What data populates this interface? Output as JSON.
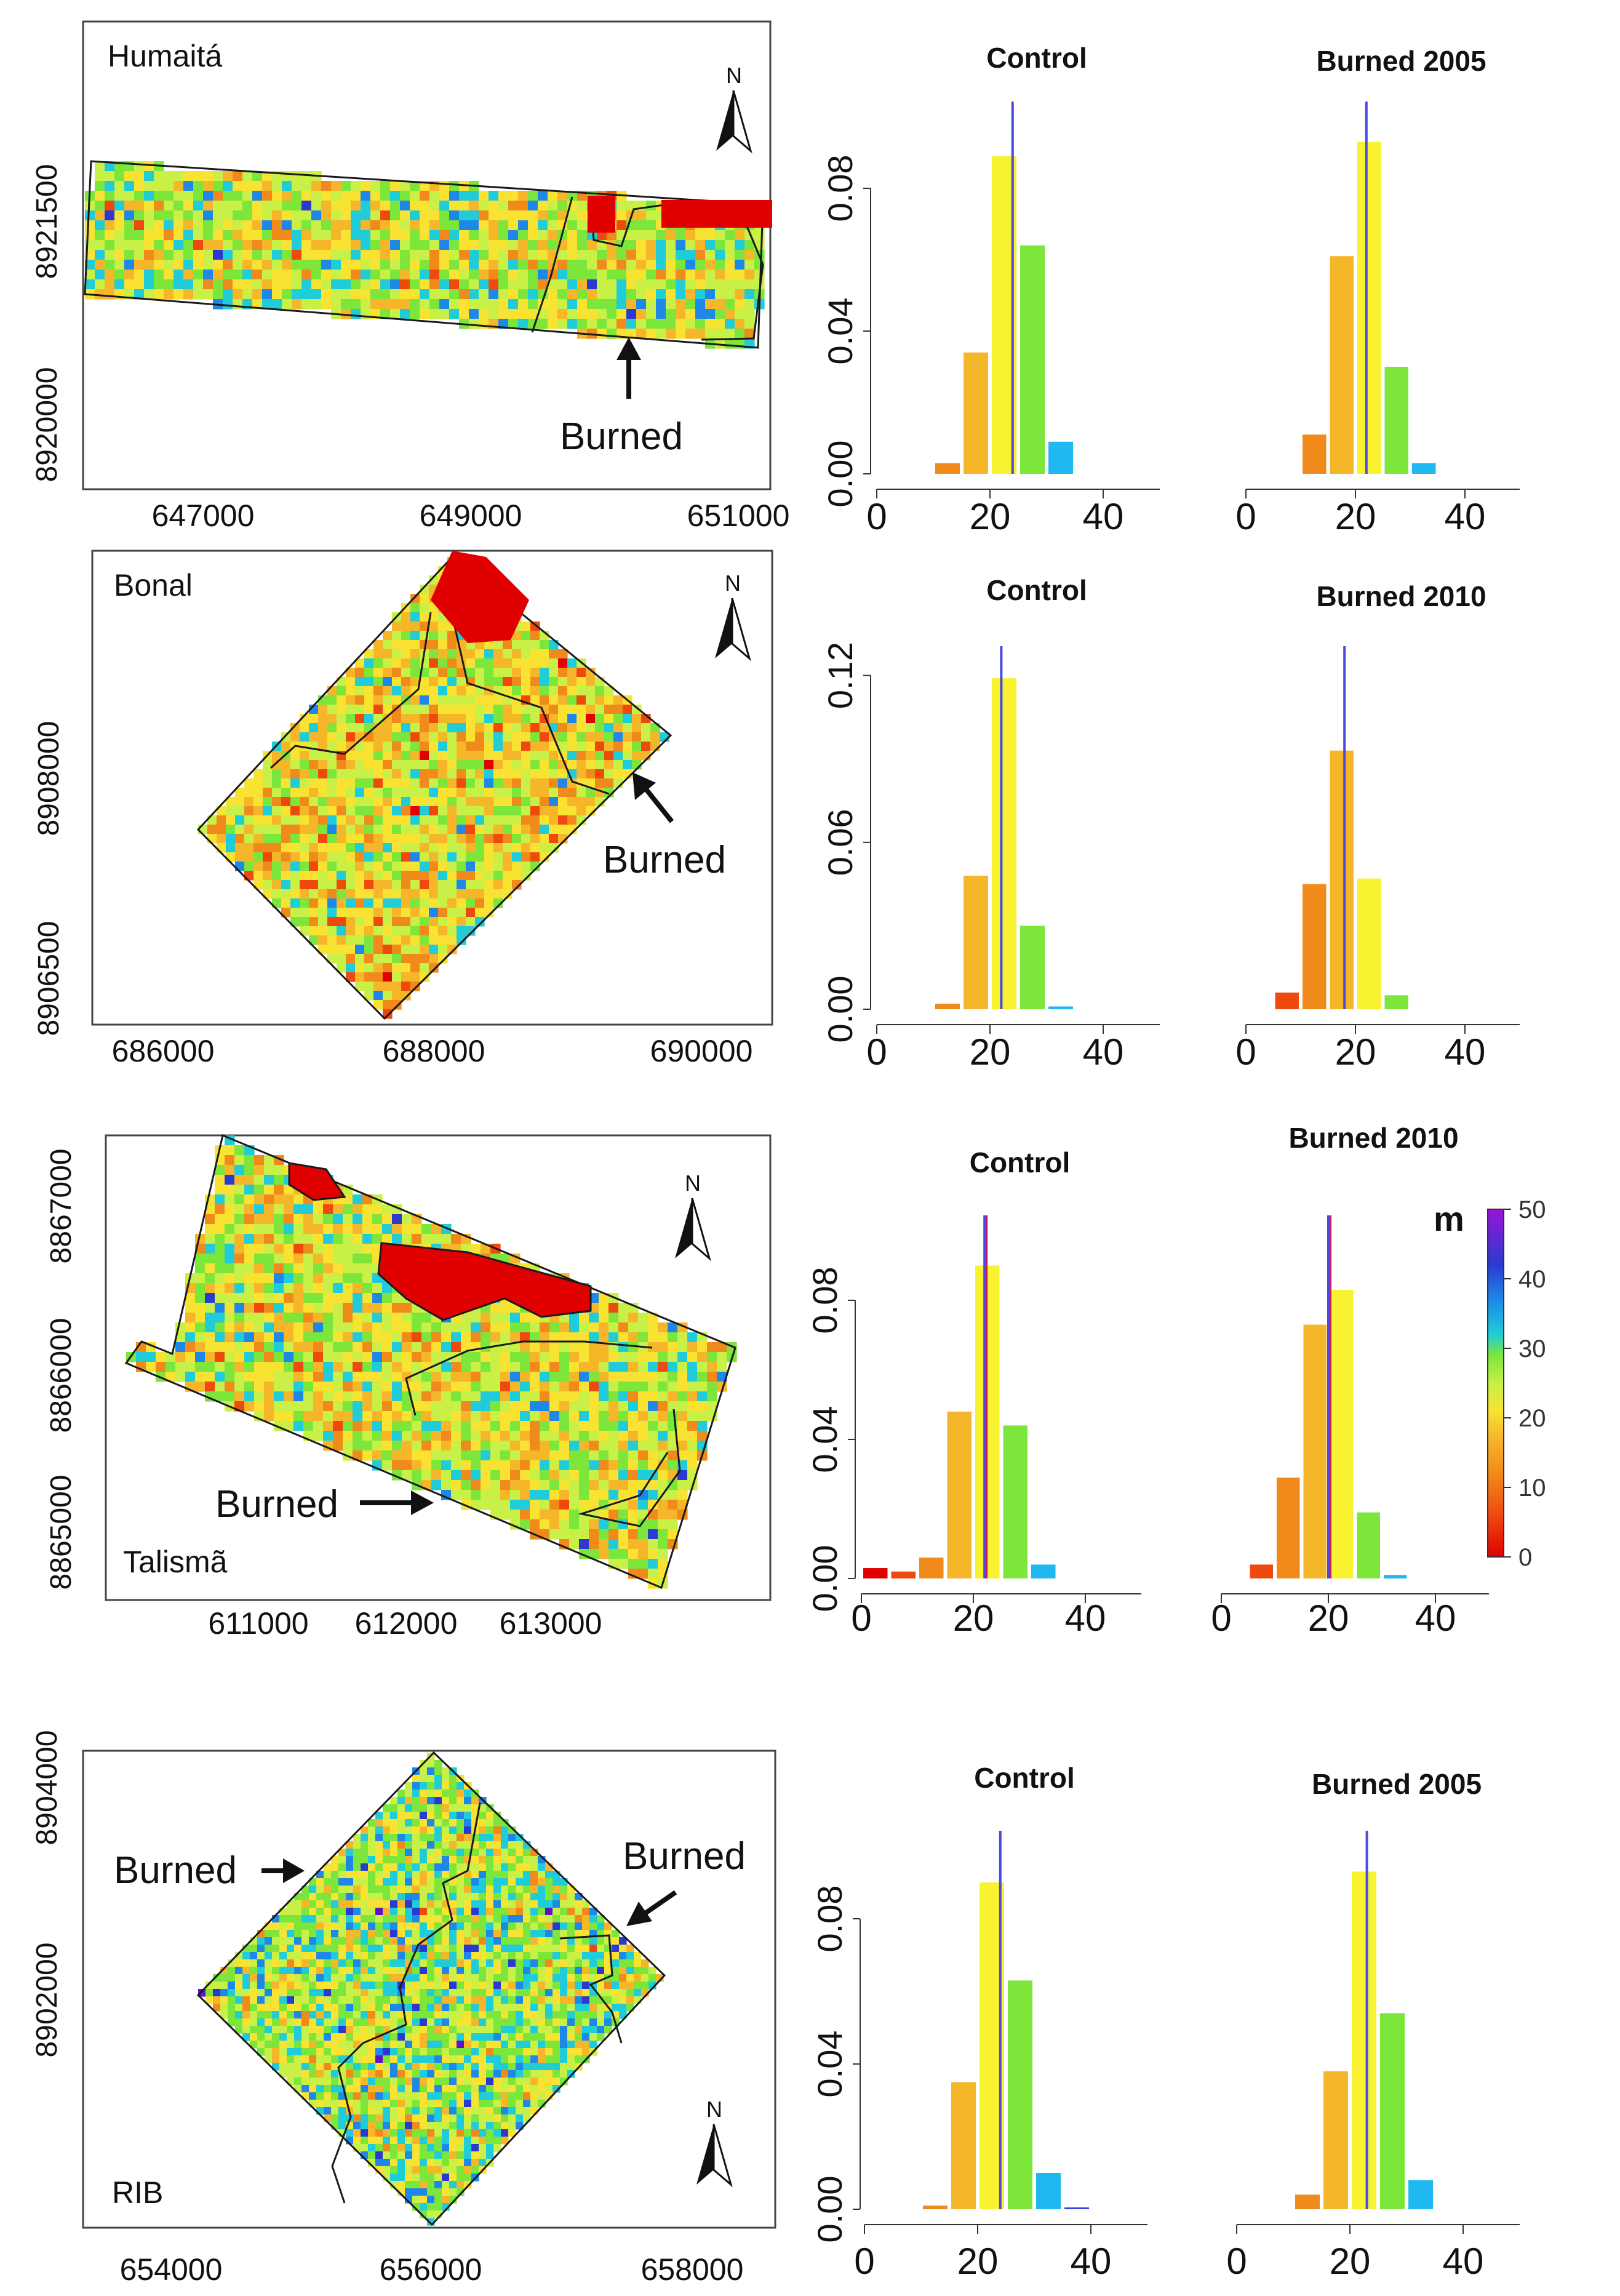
{
  "colors": {
    "scale": [
      "#e00000",
      "#ee4a0e",
      "#f08a1a",
      "#f6b62a",
      "#f8e232",
      "#c8f046",
      "#7ce63a",
      "#20ccd8",
      "#1e88e8",
      "#2a3ad0",
      "#6012c8",
      "#9a14d8"
    ],
    "mean_line": "#4a4ae0",
    "median_line": "#c0206a",
    "boundary": "#1a1a1a"
  },
  "legend": {
    "unit": "m",
    "ticks": [
      "50",
      "40",
      "30",
      "20",
      "10",
      "0"
    ]
  },
  "panels": [
    {
      "id": "humaita",
      "map": {
        "site_name": "Humaitá",
        "burned_labels": [
          "Burned"
        ],
        "north_label": "N",
        "x_ticks": [
          "647000",
          "649000",
          "651000"
        ],
        "y_ticks": [
          "8921500",
          "8920000"
        ]
      }
    },
    {
      "id": "bonal",
      "map": {
        "site_name": "Bonal",
        "burned_labels": [
          "Burned"
        ],
        "north_label": "N",
        "x_ticks": [
          "686000",
          "688000",
          "690000"
        ],
        "y_ticks": [
          "8908000",
          "8906500"
        ]
      }
    },
    {
      "id": "talisma",
      "map": {
        "site_name": "Talismã",
        "burned_labels": [
          "Burned"
        ],
        "north_label": "N",
        "x_ticks": [
          "611000",
          "612000",
          "613000"
        ],
        "y_ticks": [
          "8867000",
          "8866000",
          "8865000"
        ]
      }
    },
    {
      "id": "rib",
      "map": {
        "site_name": "RIB",
        "burned_labels": [
          "Burned",
          "Burned"
        ],
        "north_label": "N",
        "x_ticks": [
          "654000",
          "656000",
          "658000"
        ],
        "y_ticks": [
          "8904000",
          "8902000"
        ]
      }
    }
  ],
  "chart_data": [
    {
      "type": "bar",
      "title": "Control",
      "site": "Humaitá",
      "bin_edges": [
        0,
        5,
        10,
        15,
        20,
        25,
        30,
        35,
        40
      ],
      "values": [
        0,
        0,
        0.003,
        0.034,
        0.089,
        0.064,
        0.009,
        0
      ],
      "mean": 24,
      "x_ticks": [
        "0",
        "20",
        "40"
      ],
      "y_ticks": [
        "0.00",
        "0.04",
        "0.08"
      ],
      "ylim": [
        0,
        0.1
      ]
    },
    {
      "type": "bar",
      "title": "Burned 2005",
      "site": "Humaitá",
      "bin_edges": [
        0,
        5,
        10,
        15,
        20,
        25,
        30,
        35,
        40
      ],
      "values": [
        0,
        0,
        0.011,
        0.061,
        0.093,
        0.03,
        0.003,
        0
      ],
      "mean": 22,
      "x_ticks": [
        "0",
        "20",
        "40"
      ],
      "y_ticks": [
        "0.00",
        "0.04",
        "0.08"
      ],
      "ylim": [
        0,
        0.1
      ]
    },
    {
      "type": "bar",
      "title": "Control",
      "site": "Bonal",
      "bin_edges": [
        0,
        5,
        10,
        15,
        20,
        25,
        30,
        35,
        40
      ],
      "values": [
        0,
        0,
        0.002,
        0.048,
        0.119,
        0.03,
        0.001,
        0
      ],
      "mean": 22,
      "x_ticks": [
        "0",
        "20",
        "40"
      ],
      "y_ticks": [
        "0.00",
        "0.06",
        "0.12"
      ],
      "ylim": [
        0,
        0.125
      ]
    },
    {
      "type": "bar",
      "title": "Burned 2010",
      "site": "Bonal",
      "bin_edges": [
        0,
        5,
        10,
        15,
        20,
        25,
        30,
        35,
        40
      ],
      "values": [
        0,
        0.006,
        0.045,
        0.093,
        0.047,
        0.005,
        0,
        0
      ],
      "mean": 18,
      "x_ticks": [
        "0",
        "20",
        "40"
      ],
      "y_ticks": [
        "0.00",
        "0.06",
        "0.12"
      ],
      "ylim": [
        0,
        0.125
      ]
    },
    {
      "type": "bar",
      "title": "Control",
      "site": "Talismã",
      "bin_edges": [
        0,
        5,
        10,
        15,
        20,
        25,
        30,
        35,
        40
      ],
      "values": [
        0.003,
        0.002,
        0.006,
        0.048,
        0.09,
        0.044,
        0.004,
        0
      ],
      "mean": 22,
      "median": 22,
      "x_ticks": [
        "0",
        "20",
        "40"
      ],
      "y_ticks": [
        "0.00",
        "0.04",
        "0.08"
      ],
      "ylim": [
        0,
        0.1
      ]
    },
    {
      "type": "bar",
      "title": "Burned 2010",
      "site": "Talismã",
      "bin_edges": [
        0,
        5,
        10,
        15,
        20,
        25,
        30,
        35,
        40
      ],
      "values": [
        0,
        0.004,
        0.029,
        0.073,
        0.083,
        0.019,
        0.001,
        0
      ],
      "mean": 20,
      "median": 20,
      "x_ticks": [
        "0",
        "20",
        "40"
      ],
      "y_ticks": [
        "0.00",
        "0.04",
        "0.08"
      ],
      "ylim": [
        0,
        0.1
      ]
    },
    {
      "type": "bar",
      "title": "Control",
      "site": "RIB",
      "bin_edges": [
        0,
        5,
        10,
        15,
        20,
        25,
        30,
        35,
        40
      ],
      "values": [
        0,
        0,
        0.001,
        0.035,
        0.09,
        0.063,
        0.01,
        0.0005
      ],
      "mean": 24,
      "x_ticks": [
        "0",
        "20",
        "40"
      ],
      "y_ticks": [
        "0.00",
        "0.04",
        "0.08"
      ],
      "ylim": [
        0,
        0.1
      ]
    },
    {
      "type": "bar",
      "title": "Burned 2005",
      "site": "RIB",
      "bin_edges": [
        0,
        5,
        10,
        15,
        20,
        25,
        30,
        35,
        40
      ],
      "values": [
        0,
        0,
        0.004,
        0.038,
        0.093,
        0.054,
        0.008,
        0
      ],
      "mean": 23,
      "x_ticks": [
        "0",
        "20",
        "40"
      ],
      "y_ticks": [
        "0.00",
        "0.04",
        "0.08"
      ],
      "ylim": [
        0,
        0.1
      ]
    }
  ]
}
